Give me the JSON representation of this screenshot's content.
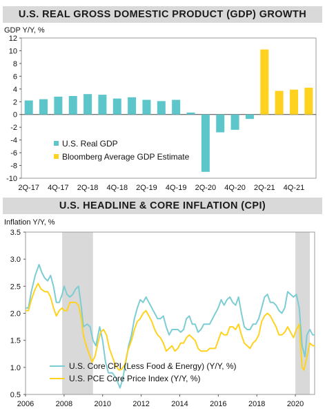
{
  "chart_data": [
    {
      "type": "bar",
      "title": "U.S. REAL GROSS DOMESTIC PRODUCT (GDP) GROWTH",
      "ylabel": "GDP Y/Y, %",
      "ylim": [
        -10,
        12
      ],
      "yticks": [
        12,
        10,
        8,
        6,
        4,
        2,
        0,
        -2,
        -4,
        -6,
        -8,
        -10
      ],
      "categories": [
        "2Q-17",
        "3Q-17",
        "4Q-17",
        "1Q-18",
        "2Q-18",
        "3Q-18",
        "4Q-18",
        "1Q-19",
        "2Q-19",
        "3Q-19",
        "4Q-19",
        "1Q-20",
        "2Q-20",
        "3Q-20",
        "4Q-20",
        "1Q-21",
        "2Q-21",
        "3Q-21",
        "4Q-21",
        "1Q-22"
      ],
      "xtick_labels": [
        "2Q-17",
        "4Q-17",
        "2Q-18",
        "4Q-18",
        "2Q-19",
        "4Q-19",
        "2Q-20",
        "4Q-20",
        "2Q-21",
        "4Q-21"
      ],
      "series": [
        {
          "name": "U.S. Real GDP",
          "color": "#5cc6cb",
          "values": [
            2.2,
            2.4,
            2.8,
            2.9,
            3.2,
            3.1,
            2.5,
            2.7,
            2.3,
            2.1,
            2.3,
            0.3,
            -9.0,
            -2.8,
            -2.4,
            -0.7,
            null,
            null,
            null,
            null
          ]
        },
        {
          "name": "Bloomberg Average GDP Estimate",
          "color": "#ffd21f",
          "values": [
            null,
            null,
            null,
            null,
            null,
            null,
            null,
            null,
            null,
            null,
            null,
            null,
            null,
            null,
            null,
            null,
            10.2,
            3.7,
            3.9,
            4.2
          ]
        }
      ],
      "grid": false,
      "legend_position": "bottom-left"
    },
    {
      "type": "line",
      "title": "U.S. HEADLINE & CORE INFLATION (CPI)",
      "ylabel": "Inflation Y/Y, %",
      "xlim": [
        2006,
        2021
      ],
      "ylim": [
        0.5,
        3.5
      ],
      "yticks": [
        3.5,
        3.0,
        2.5,
        2.0,
        1.5,
        1.0,
        0.5
      ],
      "xticks": [
        2006,
        2008,
        2010,
        2012,
        2014,
        2016,
        2018,
        2020
      ],
      "recession_shading": [
        [
          2007.9,
          2009.5
        ],
        [
          2020.0,
          2020.75
        ]
      ],
      "recession_color": "#d9d9d9",
      "legend_position": "bottom-left",
      "series": [
        {
          "name": "U.S. Core CPI (Less Food & Energy) (Y/Y, %)",
          "color": "#7ccdd3",
          "points": [
            [
              2006.0,
              2.1
            ],
            [
              2006.15,
              2.1
            ],
            [
              2006.3,
              2.4
            ],
            [
              2006.5,
              2.7
            ],
            [
              2006.7,
              2.9
            ],
            [
              2006.85,
              2.75
            ],
            [
              2007.0,
              2.65
            ],
            [
              2007.15,
              2.6
            ],
            [
              2007.3,
              2.7
            ],
            [
              2007.45,
              2.5
            ],
            [
              2007.6,
              2.2
            ],
            [
              2007.75,
              2.2
            ],
            [
              2007.9,
              2.35
            ],
            [
              2008.0,
              2.5
            ],
            [
              2008.15,
              2.35
            ],
            [
              2008.3,
              2.3
            ],
            [
              2008.45,
              2.35
            ],
            [
              2008.6,
              2.45
            ],
            [
              2008.75,
              2.5
            ],
            [
              2008.9,
              2.1
            ],
            [
              2009.0,
              1.75
            ],
            [
              2009.2,
              1.8
            ],
            [
              2009.35,
              1.75
            ],
            [
              2009.5,
              1.5
            ],
            [
              2009.65,
              1.4
            ],
            [
              2009.85,
              1.75
            ],
            [
              2010.0,
              1.5
            ],
            [
              2010.15,
              1.1
            ],
            [
              2010.3,
              0.9
            ],
            [
              2010.5,
              0.9
            ],
            [
              2010.7,
              0.8
            ],
            [
              2010.9,
              0.62
            ],
            [
              2011.05,
              0.8
            ],
            [
              2011.2,
              1.1
            ],
            [
              2011.35,
              1.4
            ],
            [
              2011.5,
              1.6
            ],
            [
              2011.65,
              1.9
            ],
            [
              2011.8,
              2.1
            ],
            [
              2011.95,
              2.25
            ],
            [
              2012.1,
              2.2
            ],
            [
              2012.25,
              2.3
            ],
            [
              2012.4,
              2.2
            ],
            [
              2012.55,
              2.1
            ],
            [
              2012.7,
              2.0
            ],
            [
              2012.85,
              1.9
            ],
            [
              2013.0,
              1.9
            ],
            [
              2013.15,
              1.95
            ],
            [
              2013.3,
              1.75
            ],
            [
              2013.45,
              1.6
            ],
            [
              2013.6,
              1.7
            ],
            [
              2013.75,
              1.7
            ],
            [
              2013.9,
              1.7
            ],
            [
              2014.05,
              1.65
            ],
            [
              2014.2,
              1.7
            ],
            [
              2014.35,
              1.9
            ],
            [
              2014.5,
              1.95
            ],
            [
              2014.65,
              1.8
            ],
            [
              2014.8,
              1.8
            ],
            [
              2014.95,
              1.65
            ],
            [
              2015.1,
              1.7
            ],
            [
              2015.25,
              1.8
            ],
            [
              2015.4,
              1.8
            ],
            [
              2015.55,
              1.8
            ],
            [
              2015.7,
              1.9
            ],
            [
              2015.85,
              2.0
            ],
            [
              2016.0,
              2.1
            ],
            [
              2016.15,
              2.25
            ],
            [
              2016.3,
              2.15
            ],
            [
              2016.45,
              2.25
            ],
            [
              2016.6,
              2.3
            ],
            [
              2016.75,
              2.2
            ],
            [
              2016.9,
              2.15
            ],
            [
              2017.05,
              2.3
            ],
            [
              2017.2,
              2.0
            ],
            [
              2017.35,
              1.75
            ],
            [
              2017.5,
              1.7
            ],
            [
              2017.65,
              1.7
            ],
            [
              2017.8,
              1.8
            ],
            [
              2017.95,
              1.8
            ],
            [
              2018.1,
              1.9
            ],
            [
              2018.25,
              2.1
            ],
            [
              2018.4,
              2.3
            ],
            [
              2018.55,
              2.35
            ],
            [
              2018.7,
              2.2
            ],
            [
              2018.85,
              2.2
            ],
            [
              2019.0,
              2.15
            ],
            [
              2019.15,
              2.05
            ],
            [
              2019.3,
              2.0
            ],
            [
              2019.45,
              2.1
            ],
            [
              2019.6,
              2.4
            ],
            [
              2019.75,
              2.35
            ],
            [
              2019.9,
              2.3
            ],
            [
              2020.05,
              2.35
            ],
            [
              2020.2,
              2.1
            ],
            [
              2020.35,
              1.4
            ],
            [
              2020.5,
              1.2
            ],
            [
              2020.6,
              1.6
            ],
            [
              2020.75,
              1.7
            ],
            [
              2020.9,
              1.6
            ],
            [
              2021.0,
              1.6
            ]
          ]
        },
        {
          "name": "U.S. PCE Core Price Index (Y/Y, %)",
          "color": "#ffd21f",
          "points": [
            [
              2006.0,
              2.05
            ],
            [
              2006.15,
              2.05
            ],
            [
              2006.3,
              2.25
            ],
            [
              2006.5,
              2.45
            ],
            [
              2006.65,
              2.55
            ],
            [
              2006.8,
              2.45
            ],
            [
              2007.0,
              2.4
            ],
            [
              2007.15,
              2.4
            ],
            [
              2007.3,
              2.3
            ],
            [
              2007.45,
              2.1
            ],
            [
              2007.6,
              1.95
            ],
            [
              2007.75,
              2.05
            ],
            [
              2007.9,
              2.1
            ],
            [
              2008.0,
              2.05
            ],
            [
              2008.15,
              2.05
            ],
            [
              2008.3,
              2.2
            ],
            [
              2008.45,
              2.2
            ],
            [
              2008.6,
              2.2
            ],
            [
              2008.75,
              2.15
            ],
            [
              2008.9,
              1.9
            ],
            [
              2009.0,
              1.6
            ],
            [
              2009.15,
              1.4
            ],
            [
              2009.3,
              1.25
            ],
            [
              2009.45,
              1.1
            ],
            [
              2009.6,
              1.2
            ],
            [
              2009.75,
              1.45
            ],
            [
              2009.9,
              1.65
            ],
            [
              2010.05,
              1.7
            ],
            [
              2010.2,
              1.6
            ],
            [
              2010.35,
              1.35
            ],
            [
              2010.5,
              1.2
            ],
            [
              2010.65,
              1.05
            ],
            [
              2010.85,
              0.95
            ],
            [
              2011.0,
              0.97
            ],
            [
              2011.15,
              1.05
            ],
            [
              2011.3,
              1.3
            ],
            [
              2011.5,
              1.5
            ],
            [
              2011.65,
              1.7
            ],
            [
              2011.8,
              1.85
            ],
            [
              2011.95,
              1.9
            ],
            [
              2012.1,
              2.0
            ],
            [
              2012.25,
              2.05
            ],
            [
              2012.4,
              1.95
            ],
            [
              2012.55,
              1.85
            ],
            [
              2012.7,
              1.7
            ],
            [
              2012.85,
              1.6
            ],
            [
              2013.0,
              1.55
            ],
            [
              2013.15,
              1.45
            ],
            [
              2013.3,
              1.3
            ],
            [
              2013.45,
              1.35
            ],
            [
              2013.6,
              1.4
            ],
            [
              2013.75,
              1.3
            ],
            [
              2013.9,
              1.35
            ],
            [
              2014.05,
              1.45
            ],
            [
              2014.2,
              1.45
            ],
            [
              2014.35,
              1.55
            ],
            [
              2014.5,
              1.6
            ],
            [
              2014.65,
              1.55
            ],
            [
              2014.8,
              1.5
            ],
            [
              2014.95,
              1.35
            ],
            [
              2015.1,
              1.3
            ],
            [
              2015.25,
              1.3
            ],
            [
              2015.4,
              1.3
            ],
            [
              2015.55,
              1.35
            ],
            [
              2015.7,
              1.35
            ],
            [
              2015.85,
              1.35
            ],
            [
              2016.0,
              1.5
            ],
            [
              2016.15,
              1.65
            ],
            [
              2016.3,
              1.6
            ],
            [
              2016.45,
              1.6
            ],
            [
              2016.6,
              1.75
            ],
            [
              2016.75,
              1.75
            ],
            [
              2016.9,
              1.7
            ],
            [
              2017.05,
              1.8
            ],
            [
              2017.2,
              1.6
            ],
            [
              2017.35,
              1.45
            ],
            [
              2017.5,
              1.4
            ],
            [
              2017.65,
              1.35
            ],
            [
              2017.8,
              1.45
            ],
            [
              2017.95,
              1.5
            ],
            [
              2018.1,
              1.6
            ],
            [
              2018.25,
              1.85
            ],
            [
              2018.4,
              1.95
            ],
            [
              2018.55,
              2.0
            ],
            [
              2018.7,
              1.95
            ],
            [
              2018.85,
              1.85
            ],
            [
              2019.0,
              1.75
            ],
            [
              2019.15,
              1.6
            ],
            [
              2019.3,
              1.6
            ],
            [
              2019.45,
              1.65
            ],
            [
              2019.6,
              1.75
            ],
            [
              2019.75,
              1.65
            ],
            [
              2019.9,
              1.55
            ],
            [
              2020.05,
              1.7
            ],
            [
              2020.2,
              1.8
            ],
            [
              2020.35,
              1.0
            ],
            [
              2020.45,
              0.95
            ],
            [
              2020.6,
              1.2
            ],
            [
              2020.75,
              1.45
            ],
            [
              2020.9,
              1.4
            ],
            [
              2021.0,
              1.4
            ]
          ]
        }
      ]
    }
  ]
}
